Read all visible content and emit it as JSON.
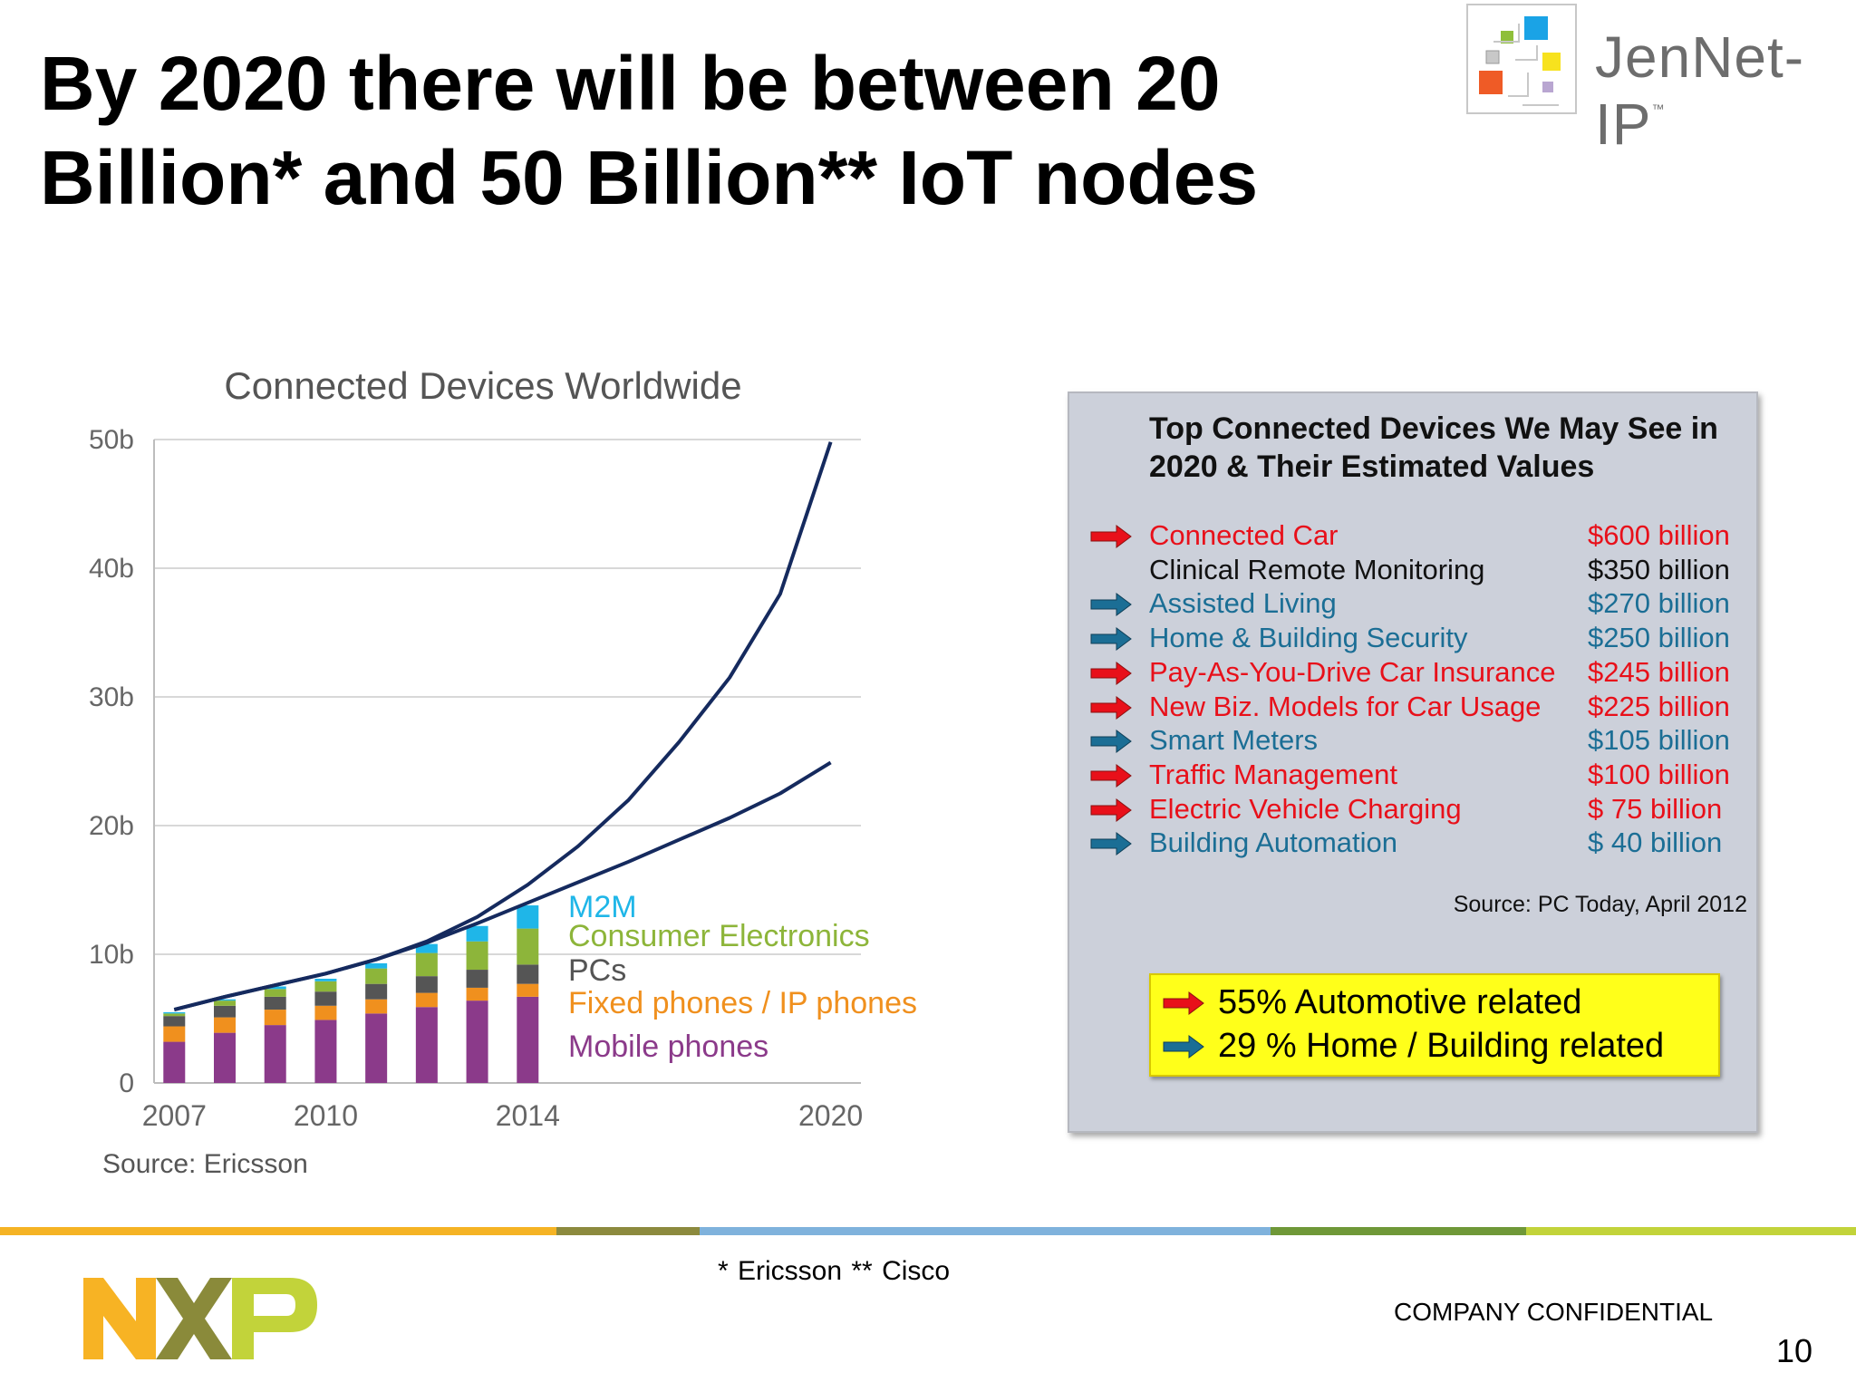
{
  "slide": {
    "title_line1": "By 2020 there will be between 20",
    "title_line2": "Billion* and 50 Billion** IoT nodes",
    "logo_text": "JenNet-IP",
    "logo_tm": "™",
    "footnote": "* Ericsson     ** Cisco",
    "confidential": "COMPANY CONFIDENTIAL",
    "page_number": "10",
    "nxp_logo_text": "NXP"
  },
  "chart_data": {
    "type": "bar",
    "title": "Connected Devices Worldwide",
    "source": "Source: Ericsson",
    "stacked": true,
    "x_tick_labels": [
      "2007",
      "2010",
      "2014",
      "2020"
    ],
    "y_tick_labels": [
      "0",
      "10b",
      "20b",
      "30b",
      "40b",
      "50b"
    ],
    "ylim": [
      0,
      50
    ],
    "xlim": [
      2006.6,
      2020.6
    ],
    "grid": true,
    "legend_position": "inline-right-of-bars",
    "x": [
      2007,
      2008,
      2009,
      2010,
      2011,
      2012,
      2013,
      2014
    ],
    "series": [
      {
        "name": "Mobile phones",
        "color": "#8b3a8a",
        "values": [
          3.2,
          3.9,
          4.5,
          4.9,
          5.4,
          5.9,
          6.4,
          6.7
        ]
      },
      {
        "name": "Fixed phones / IP phones",
        "color": "#f0901e",
        "values": [
          1.2,
          1.2,
          1.2,
          1.1,
          1.1,
          1.1,
          1.0,
          1.0
        ]
      },
      {
        "name": "PCs",
        "color": "#555555",
        "values": [
          0.8,
          0.9,
          1.0,
          1.1,
          1.2,
          1.3,
          1.4,
          1.5
        ]
      },
      {
        "name": "Consumer Electronics",
        "color": "#8db53a",
        "values": [
          0.2,
          0.4,
          0.6,
          0.8,
          1.2,
          1.8,
          2.2,
          2.8
        ]
      },
      {
        "name": "M2M",
        "color": "#1fb6e8",
        "values": [
          0.1,
          0.1,
          0.2,
          0.2,
          0.4,
          0.7,
          1.2,
          1.8
        ]
      }
    ],
    "lines": [
      {
        "name": "",
        "color": "#152a5e",
        "x": [
          2007,
          2008,
          2009,
          2010,
          2011,
          2012,
          2013,
          2014,
          2015,
          2016,
          2017,
          2018,
          2019,
          2020
        ],
        "values": [
          5.7,
          6.7,
          7.6,
          8.5,
          9.6,
          11.0,
          12.9,
          15.4,
          18.4,
          22.0,
          26.5,
          31.5,
          38.0,
          49.8
        ]
      },
      {
        "name": "",
        "color": "#152a5e",
        "x": [
          2007,
          2008,
          2009,
          2010,
          2011,
          2012,
          2013,
          2014,
          2015,
          2016,
          2017,
          2018,
          2019,
          2020
        ],
        "values": [
          5.7,
          6.7,
          7.6,
          8.5,
          9.6,
          10.9,
          12.4,
          14.0,
          15.6,
          17.2,
          18.9,
          20.6,
          22.5,
          24.9
        ]
      }
    ]
  },
  "panel": {
    "title": "Top Connected Devices We May See in 2020 & Their Estimated Values",
    "source": "Source: PC Today, April 2012",
    "colors": {
      "red": "#e8101a",
      "blue": "#1b6e95",
      "black": "#111111"
    },
    "devices": [
      {
        "name": "Connected Car",
        "value": "$600 billion",
        "color": "red",
        "arrow": "red"
      },
      {
        "name": "Clinical Remote Monitoring",
        "value": "$350 billion",
        "color": "black",
        "arrow": "none"
      },
      {
        "name": "Assisted Living",
        "value": "$270 billion",
        "color": "blue",
        "arrow": "blue"
      },
      {
        "name": "Home & Building Security",
        "value": "$250 billion",
        "color": "blue",
        "arrow": "blue"
      },
      {
        "name": "Pay-As-You-Drive Car Insurance",
        "value": "$245 billion",
        "color": "red",
        "arrow": "red"
      },
      {
        "name": "New Biz. Models for Car Usage",
        "value": "$225 billion",
        "color": "red",
        "arrow": "red"
      },
      {
        "name": "Smart Meters",
        "value": "$105 billion",
        "color": "blue",
        "arrow": "blue"
      },
      {
        "name": "Traffic Management",
        "value": "$100 billion",
        "color": "red",
        "arrow": "red"
      },
      {
        "name": "Electric Vehicle Charging",
        "value": "$  75 billion",
        "color": "red",
        "arrow": "red"
      },
      {
        "name": "Building Automation",
        "value": "$  40 billion",
        "color": "blue",
        "arrow": "blue"
      }
    ],
    "callout": [
      {
        "text": "55% Automotive related",
        "arrow": "red"
      },
      {
        "text": "29 % Home / Building related",
        "arrow": "blue"
      }
    ]
  },
  "stripe_colors": [
    "#f5b324",
    "#8c8a3e",
    "#7fb2dc",
    "#6f9838",
    "#c2d33a"
  ]
}
